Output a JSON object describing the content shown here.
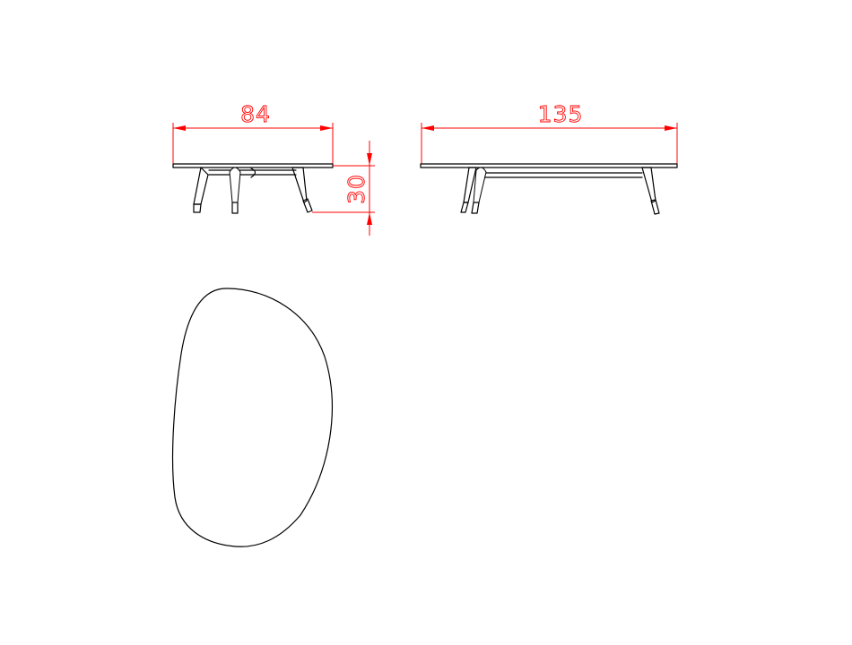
{
  "dimensions": {
    "width": "84",
    "length": "135",
    "height": "30"
  },
  "colors": {
    "dimension": "#ff0000",
    "object": "#000000",
    "background": "#ffffff"
  }
}
